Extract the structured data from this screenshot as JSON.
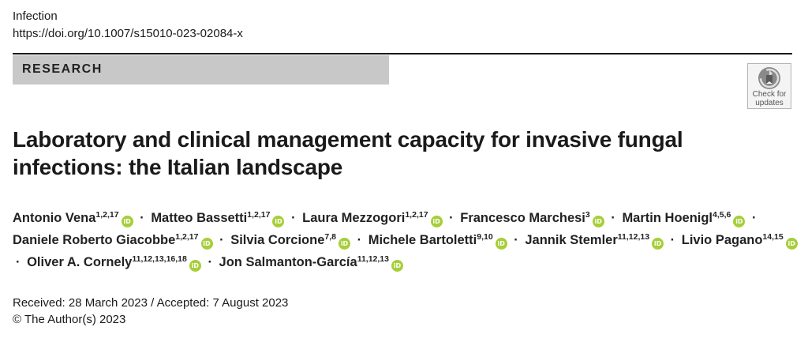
{
  "header": {
    "journal": "Infection",
    "doi": "https://doi.org/10.1007/s15010-023-02084-x"
  },
  "section": {
    "label": "RESEARCH"
  },
  "check_updates": {
    "line1": "Check for",
    "line2": "updates",
    "icon": "check-for-updates-icon"
  },
  "article": {
    "title": "Laboratory and clinical management capacity for invasive fungal infections: the Italian landscape"
  },
  "authors": [
    {
      "name": "Antonio Vena",
      "aff": "1,2,17"
    },
    {
      "name": "Matteo Bassetti",
      "aff": "1,2,17"
    },
    {
      "name": "Laura Mezzogori",
      "aff": "1,2,17"
    },
    {
      "name": "Francesco Marchesi",
      "aff": "3"
    },
    {
      "name": "Martin Hoenigl",
      "aff": "4,5,6"
    },
    {
      "name": "Daniele Roberto Giacobbe",
      "aff": "1,2,17"
    },
    {
      "name": "Silvia Corcione",
      "aff": "7,8"
    },
    {
      "name": "Michele Bartoletti",
      "aff": "9,10"
    },
    {
      "name": "Jannik Stemler",
      "aff": "11,12,13"
    },
    {
      "name": "Livio Pagano",
      "aff": "14,15"
    },
    {
      "name": "Oliver A. Cornely",
      "aff": "11,12,13,16,18"
    },
    {
      "name": "Jon Salmanton-García",
      "aff": "11,12,13"
    }
  ],
  "author_separator": "·",
  "orcid_icon": {
    "name": "orcid-icon",
    "text": "iD",
    "color": "#a6ce39"
  },
  "dates": {
    "received_line": "Received: 28 March 2023 / Accepted: 7 August 2023"
  },
  "copyright": "© The Author(s) 2023"
}
